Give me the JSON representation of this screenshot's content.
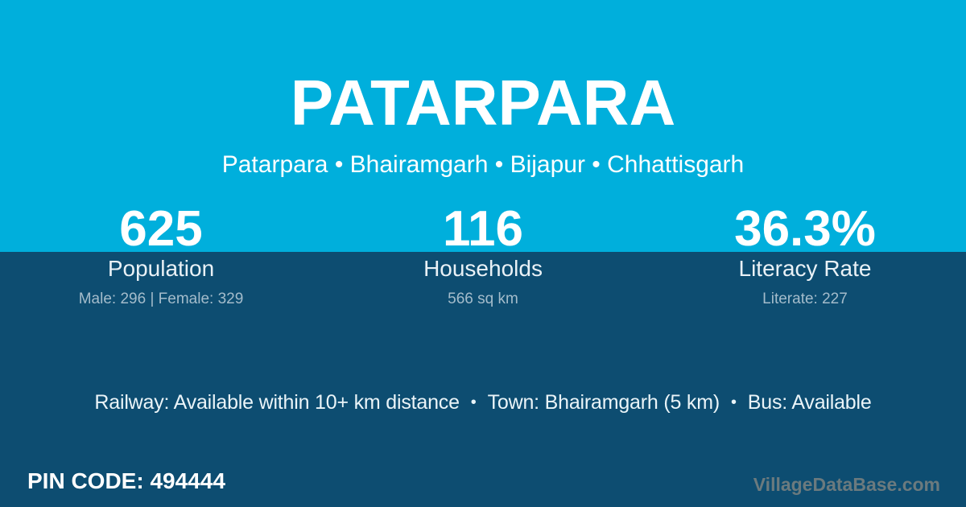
{
  "colors": {
    "band_cyan": "#00afdc",
    "background_dark_blue": "#0d4d71",
    "text_white": "#ffffff",
    "text_detail": "#a4bccb",
    "watermark_gray": "#6b7a7e"
  },
  "header": {
    "title": "PATARPARA",
    "breadcrumb": "Patarpara • Bhairamgarh • Bijapur • Chhattisgarh"
  },
  "stats": [
    {
      "value": "625",
      "label": "Population",
      "detail": "Male: 296 | Female: 329"
    },
    {
      "value": "116",
      "label": "Households",
      "detail": "566 sq km"
    },
    {
      "value": "36.3%",
      "label": "Literacy Rate",
      "detail": "Literate: 227"
    }
  ],
  "transport": {
    "railway": "Railway: Available within 10+ km distance",
    "town": "Town: Bhairamgarh (5 km)",
    "bus": "Bus: Available",
    "separator": "•"
  },
  "pin": {
    "label": "PIN CODE:",
    "value": "494444"
  },
  "watermark": "VillageDataBase.com"
}
